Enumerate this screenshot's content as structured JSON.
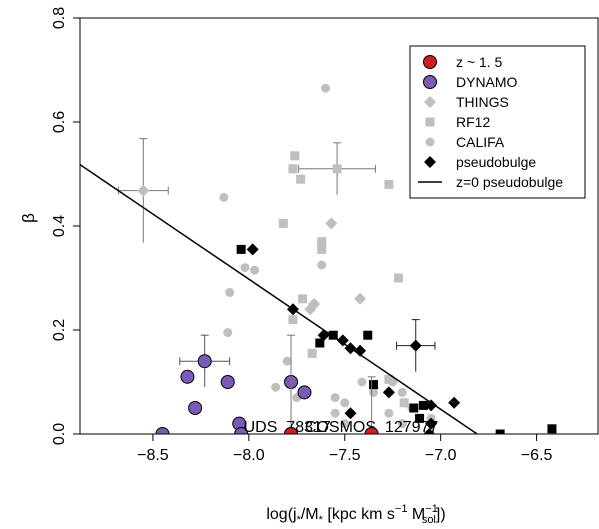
{
  "chart_data": {
    "type": "scatter",
    "title": "",
    "xlabel": {
      "main": "log(j",
      "sub1": "*",
      "mid": "/M",
      "sub2": "*",
      "rest": " [kpc km s",
      "sup": "−1",
      "space": " M",
      "sup2": "−1",
      "sub3": "sol",
      "end": "])"
    },
    "ylabel": "β",
    "xlim": [
      -8.88,
      -6.18
    ],
    "ylim": [
      0,
      0.8
    ],
    "xticks": [
      -8.5,
      -8.0,
      -7.5,
      -7.0,
      -6.5
    ],
    "xtick_labels": [
      "−8.5",
      "−8.0",
      "−7.5",
      "−7.0",
      "−6.5"
    ],
    "yticks": [
      0.0,
      0.2,
      0.4,
      0.6,
      0.8
    ],
    "ytick_labels": [
      "0.0",
      "0.2",
      "0.4",
      "0.6",
      "0.8"
    ],
    "grid": false,
    "legend_position": "top-right",
    "colors": {
      "z15": "#cc1f1f",
      "dynamo": "#7b5ab5",
      "things": "#bfbfbf",
      "rf12": "#bfbfbf",
      "califa": "#bfbfbf",
      "pseudobulge": "#000000",
      "line": "#000000"
    },
    "legend": [
      {
        "key": "z15",
        "label": "z ~ 1. 5",
        "marker": "circle"
      },
      {
        "key": "dynamo",
        "label": "DYNAMO",
        "marker": "circle"
      },
      {
        "key": "things",
        "label": "THINGS",
        "marker": "diamond"
      },
      {
        "key": "rf12",
        "label": "RF12",
        "marker": "square"
      },
      {
        "key": "califa",
        "label": "CALIFA",
        "marker": "dot"
      },
      {
        "key": "pseudobulge",
        "label": "pseudobulge",
        "marker": "diamond"
      },
      {
        "key": "line",
        "label": "z=0 pseudobulge",
        "marker": "line"
      }
    ],
    "fit_line": {
      "name": "z=0 pseudobulge",
      "x": [
        -8.88,
        -6.81
      ],
      "y": [
        0.518,
        0.0
      ]
    },
    "series": [
      {
        "key": "califa",
        "marker": "dot",
        "points": [
          [
            -8.13,
            0.455
          ],
          [
            -7.6,
            0.665
          ],
          [
            -7.97,
            0.315
          ],
          [
            -8.1,
            0.272
          ],
          [
            -8.11,
            0.195
          ],
          [
            -7.8,
            0.14
          ],
          [
            -7.62,
            0.325
          ],
          [
            -7.55,
            0.07
          ],
          [
            -7.5,
            0.06
          ],
          [
            -7.47,
            0.04
          ],
          [
            -7.5,
            0.02
          ],
          [
            -7.41,
            0.1
          ],
          [
            -7.35,
            0.08
          ],
          [
            -7.25,
            0.1
          ],
          [
            -7.2,
            0.08
          ],
          [
            -7.15,
            0.05
          ],
          [
            -7.05,
            0.03
          ],
          [
            -7.27,
            0.04
          ],
          [
            -7.55,
            0.04
          ],
          [
            -7.75,
            0.07
          ],
          [
            -7.86,
            0.09
          ],
          [
            -8.02,
            0.32
          ],
          [
            -7.66,
            0.25
          ],
          [
            -7.2,
            0.02
          ]
        ]
      },
      {
        "key": "rf12",
        "marker": "square",
        "points": [
          [
            -7.76,
            0.535
          ],
          [
            -7.77,
            0.51
          ],
          [
            -7.73,
            0.49
          ],
          [
            -7.82,
            0.405
          ],
          [
            -7.62,
            0.37
          ],
          [
            -7.62,
            0.355
          ],
          [
            -7.72,
            0.26
          ],
          [
            -7.77,
            0.22
          ],
          [
            -7.67,
            0.155
          ],
          [
            -7.27,
            0.48
          ],
          [
            -7.22,
            0.3
          ],
          [
            -7.27,
            0.105
          ],
          [
            -7.19,
            0.06
          ]
        ]
      },
      {
        "key": "things",
        "marker": "diamond",
        "points": [
          [
            -7.57,
            0.405
          ],
          [
            -7.66,
            0.25
          ],
          [
            -7.68,
            0.24
          ],
          [
            -7.42,
            0.26
          ]
        ]
      },
      {
        "key": "pseudobulge",
        "marker": "square",
        "points": [
          [
            -8.04,
            0.355
          ],
          [
            -7.56,
            0.19
          ],
          [
            -7.38,
            0.19
          ],
          [
            -7.63,
            0.175
          ],
          [
            -7.35,
            0.095
          ],
          [
            -7.14,
            0.05
          ],
          [
            -7.09,
            0.055
          ],
          [
            -7.11,
            0.03
          ],
          [
            -6.69,
            0.0
          ],
          [
            -6.42,
            0.01
          ]
        ]
      },
      {
        "key": "pseudobulge",
        "marker": "diamond",
        "points": [
          [
            -7.98,
            0.355
          ],
          [
            -7.77,
            0.24
          ],
          [
            -7.61,
            0.19
          ],
          [
            -7.51,
            0.18
          ],
          [
            -7.47,
            0.165
          ],
          [
            -7.42,
            0.16
          ],
          [
            -7.27,
            0.08
          ],
          [
            -7.05,
            0.055
          ],
          [
            -6.93,
            0.06
          ],
          [
            -7.47,
            0.04
          ],
          [
            -7.05,
            0.02
          ],
          [
            -7.06,
            0.0
          ]
        ]
      },
      {
        "key": "dynamo",
        "marker": "circle",
        "points": [
          [
            -8.45,
            0.0
          ],
          [
            -8.32,
            0.11
          ],
          [
            -8.28,
            0.05
          ],
          [
            -8.11,
            0.1
          ],
          [
            -8.05,
            0.02
          ],
          [
            -8.04,
            0.0
          ],
          [
            -7.78,
            0.1
          ],
          [
            -7.71,
            0.08
          ]
        ]
      },
      {
        "key": "z15",
        "marker": "circle",
        "points": [
          [
            -7.78,
            0.0
          ],
          [
            -7.36,
            0.0
          ]
        ]
      }
    ],
    "errorbars": [
      {
        "key": "things",
        "x": -8.55,
        "y": 0.468,
        "xerr": 0.13,
        "yerr": 0.1
      },
      {
        "key": "rf12",
        "x": -7.54,
        "y": 0.51,
        "xerr": 0.2,
        "yerr": 0.05
      },
      {
        "key": "dynamo",
        "x": -8.23,
        "y": 0.14,
        "xerr": 0.13,
        "yerr": 0.05
      },
      {
        "key": "pseudobulge",
        "x": -7.13,
        "y": 0.17,
        "xerr": 0.1,
        "yerr": 0.05
      },
      {
        "key": "z15",
        "x": -7.78,
        "y": 0.0,
        "xerr": 0.0,
        "yerr": 0.19
      },
      {
        "key": "z15",
        "x": -7.36,
        "y": 0.0,
        "xerr": 0.0,
        "yerr": 0.11
      }
    ],
    "annotations": [
      {
        "text": "UDS_78317",
        "x": -7.8,
        "y": 0.0
      },
      {
        "text": "COSMOS_127977",
        "x": -7.36,
        "y": 0.0
      }
    ]
  }
}
